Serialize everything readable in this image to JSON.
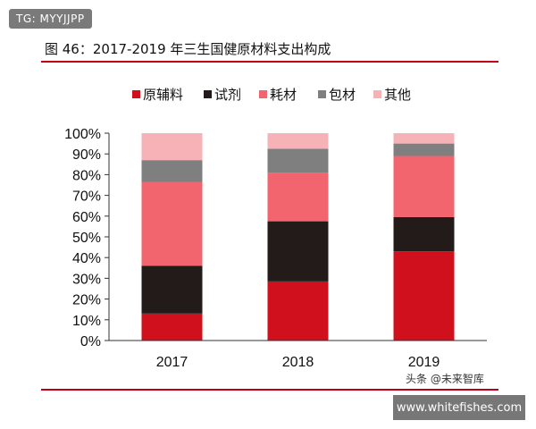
{
  "badge": {
    "text": "TG: MYYJJPP"
  },
  "watermark": {
    "text": "头条 @未来智库",
    "site": "www.whitefishes.com"
  },
  "chart_data": {
    "type": "bar",
    "stacked": true,
    "title": "图 46：2017-2019 年三生国健原材料支出构成",
    "categories": [
      "2017",
      "2018",
      "2019"
    ],
    "ylim": [
      0,
      100
    ],
    "yticks": [
      "0%",
      "10%",
      "20%",
      "30%",
      "40%",
      "50%",
      "60%",
      "70%",
      "80%",
      "90%",
      "100%"
    ],
    "legend_position": "top",
    "grid": false,
    "series": [
      {
        "name": "原辅料",
        "color": "#d0101c",
        "values": [
          13,
          28.5,
          43
        ]
      },
      {
        "name": "试剂",
        "color": "#231b1a",
        "values": [
          23,
          29,
          16.5
        ]
      },
      {
        "name": "耗材",
        "color": "#f2646e",
        "values": [
          40.5,
          23.5,
          29.5
        ]
      },
      {
        "name": "包材",
        "color": "#7f7f7f",
        "values": [
          10.5,
          11.5,
          6
        ]
      },
      {
        "name": "其他",
        "color": "#f7b2b8",
        "values": [
          13,
          7.5,
          5
        ]
      }
    ]
  }
}
